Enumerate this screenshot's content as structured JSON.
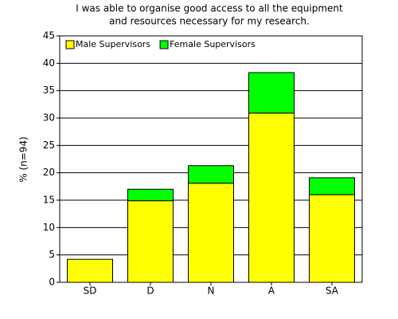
{
  "chart_data": {
    "type": "stacked_bar",
    "title": [
      "I was able to organise good access to all the equipment",
      "and resources necessary for my research."
    ],
    "y_label": "% (n=94)",
    "categories": [
      "SD",
      "D",
      "N",
      "A",
      "SA"
    ],
    "series": [
      {
        "name": "Male Supervisors",
        "color": "#ffff00",
        "values": [
          4.2,
          14.9,
          18.1,
          30.9,
          16.0
        ]
      },
      {
        "name": "Female Supervisors",
        "color": "#00ff00",
        "values": [
          0,
          2.1,
          3.2,
          7.4,
          3.1
        ]
      }
    ],
    "ylim": [
      0,
      45
    ],
    "yticks": [
      0,
      5,
      10,
      15,
      20,
      25,
      30,
      35,
      40,
      45
    ],
    "grid": true,
    "legend": "upper-left"
  }
}
